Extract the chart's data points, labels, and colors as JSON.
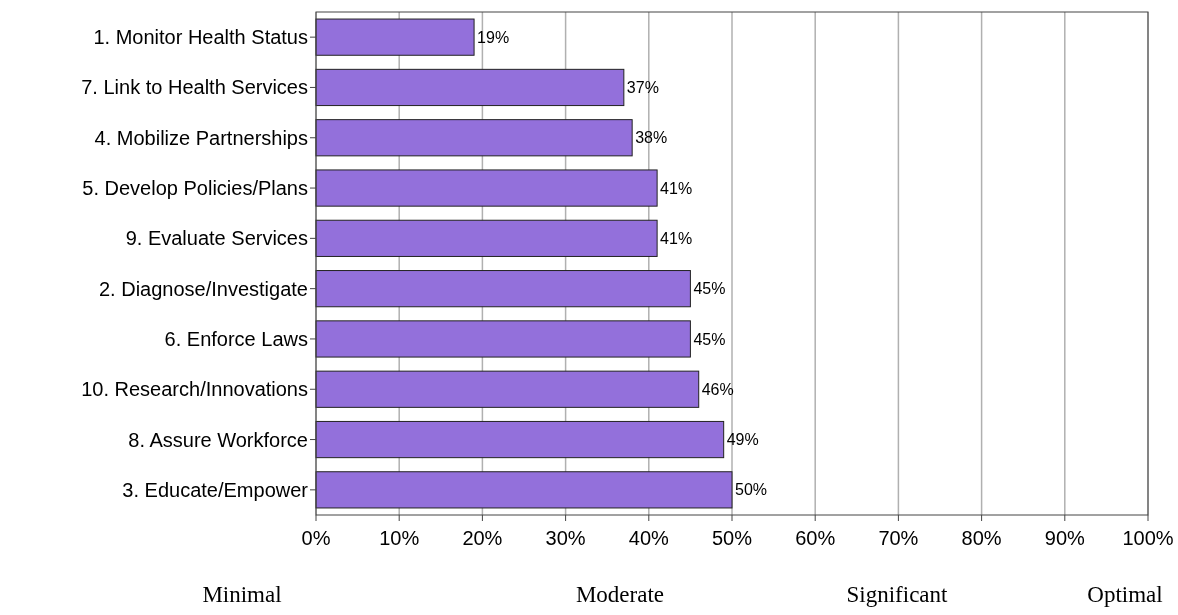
{
  "chart_data": {
    "type": "bar",
    "orientation": "horizontal",
    "categories": [
      "1.  Monitor Health Status",
      "7.  Link to Health Services",
      "4.  Mobilize Partnerships",
      "5.  Develop Policies/Plans",
      "9.  Evaluate Services",
      "2.  Diagnose/Investigate",
      "6.  Enforce Laws",
      "10.  Research/Innovations",
      "8.  Assure Workforce",
      "3.  Educate/Empower"
    ],
    "values": [
      19,
      37,
      38,
      41,
      41,
      45,
      45,
      46,
      49,
      50
    ],
    "value_labels": [
      "19%",
      "37%",
      "38%",
      "41%",
      "41%",
      "45%",
      "45%",
      "46%",
      "49%",
      "50%"
    ],
    "color": "#9370db",
    "xlim": [
      0,
      100
    ],
    "xticks": [
      {
        "value": 0,
        "label": "0%"
      },
      {
        "value": 10,
        "label": "10%"
      },
      {
        "value": 20,
        "label": "20%"
      },
      {
        "value": 30,
        "label": "30%"
      },
      {
        "value": 40,
        "label": "40%"
      },
      {
        "value": 50,
        "label": "50%"
      },
      {
        "value": 60,
        "label": "60%"
      },
      {
        "value": 70,
        "label": "70%"
      },
      {
        "value": 80,
        "label": "80%"
      },
      {
        "value": 90,
        "label": "90%"
      },
      {
        "value": 100,
        "label": "100%"
      }
    ],
    "grid": "x",
    "annotations": [
      "Minimal",
      "Moderate",
      "Significant",
      "Optimal"
    ]
  }
}
